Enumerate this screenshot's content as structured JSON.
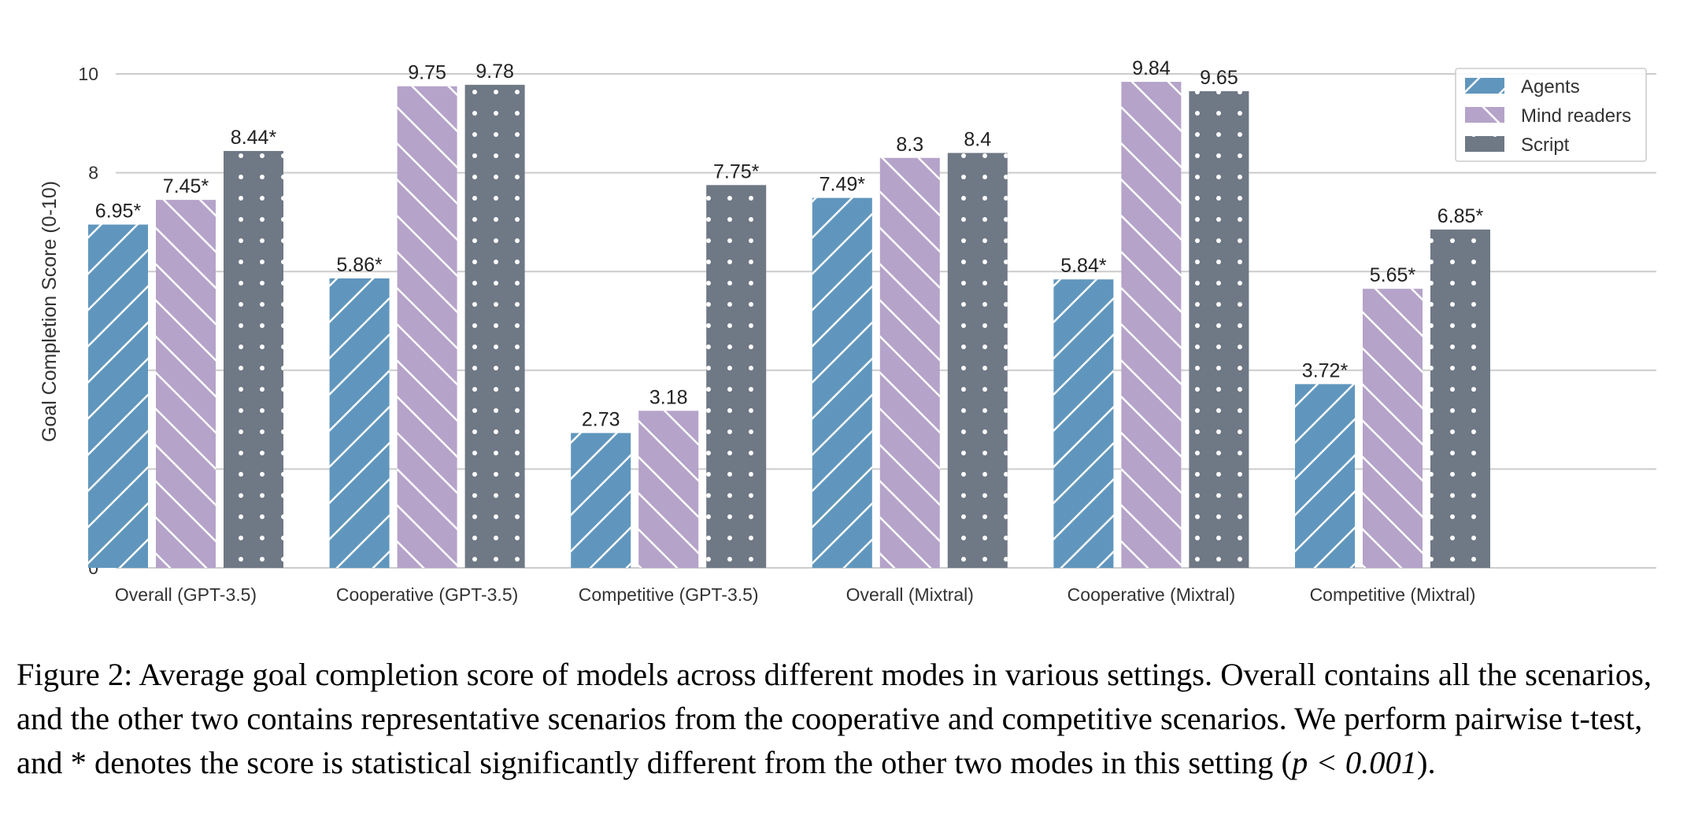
{
  "chart_data": {
    "type": "bar",
    "ylabel": "Goal Completion Score (0-10)",
    "xlabel": "",
    "ylim": [
      0,
      10.5
    ],
    "yticks": [
      0,
      2,
      4,
      6,
      8,
      10
    ],
    "grid": "horizontal",
    "legend_position": "top-right",
    "categories": [
      "Overall (GPT-3.5)",
      "Cooperative (GPT-3.5)",
      "Competitive (GPT-3.5)",
      "Overall (Mixtral)",
      "Cooperative (Mixtral)",
      "Competitive (Mixtral)"
    ],
    "series": [
      {
        "name": "Agents",
        "color": "#6096bd",
        "pattern": "forward-hatch",
        "values": [
          6.95,
          5.86,
          2.73,
          7.49,
          5.84,
          3.72
        ],
        "labels": [
          "6.95*",
          "5.86*",
          "2.73",
          "7.49*",
          "5.84*",
          "3.72*"
        ]
      },
      {
        "name": "Mind readers",
        "color": "#b5a3c9",
        "pattern": "back-hatch",
        "values": [
          7.45,
          9.75,
          3.18,
          8.3,
          9.84,
          5.65
        ],
        "labels": [
          "7.45*",
          "9.75",
          "3.18",
          "8.3",
          "9.84",
          "5.65*"
        ]
      },
      {
        "name": "Script",
        "color": "#6f7885",
        "pattern": "dots",
        "values": [
          8.44,
          9.78,
          7.75,
          8.4,
          9.65,
          6.85
        ],
        "labels": [
          "8.44*",
          "9.78",
          "7.75*",
          "8.4",
          "9.65",
          "6.85*"
        ]
      }
    ]
  },
  "caption": {
    "text": "Figure 2: Average goal completion score of models across different modes in various settings. Overall contains all the scenarios, and the other two contains representative scenarios from the cooperative and competitive scenarios. We perform pairwise t-test, and * denotes the score is statistical significantly different from the other two modes in this setting (",
    "math": "p < 0.001",
    "end": ")."
  }
}
